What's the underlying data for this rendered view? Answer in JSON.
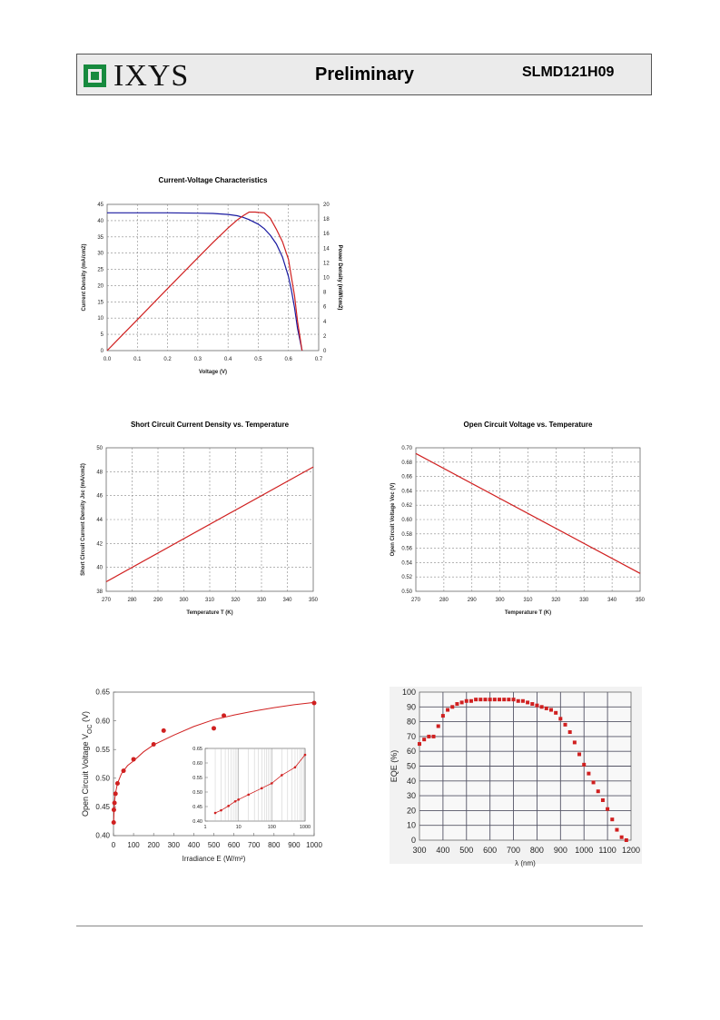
{
  "header": {
    "brand": "IXYS",
    "status": "Preliminary",
    "part_number": "SLMD121H09"
  },
  "chart_data": [
    {
      "id": "iv",
      "type": "line",
      "title": "Current-Voltage Characteristics",
      "xlabel": "Voltage (V)",
      "ylabel": "Current Density (mA/cm2)",
      "y2label": "Power Density (mW/cm2)",
      "xlim": [
        0,
        0.7
      ],
      "ylim": [
        0,
        45
      ],
      "y2lim": [
        0,
        20
      ],
      "xticks": [
        "0.0",
        "0.1",
        "0.2",
        "0.3",
        "0.4",
        "0.5",
        "0.6",
        "0.7"
      ],
      "yticks": [
        "0",
        "5",
        "10",
        "15",
        "20",
        "25",
        "30",
        "35",
        "40",
        "45"
      ],
      "y2ticks": [
        "0",
        "2",
        "4",
        "6",
        "8",
        "10",
        "12",
        "14",
        "16",
        "18",
        "20"
      ],
      "grid": true,
      "series": [
        {
          "color": "#1a1aa0",
          "axis": "left",
          "x": [
            0,
            0.1,
            0.2,
            0.3,
            0.35,
            0.4,
            0.43,
            0.45,
            0.47,
            0.5,
            0.52,
            0.54,
            0.56,
            0.58,
            0.6,
            0.61,
            0.62,
            0.63,
            0.645
          ],
          "y": [
            42.4,
            42.4,
            42.4,
            42.3,
            42.2,
            41.9,
            41.5,
            41.0,
            40.3,
            38.9,
            37.5,
            35.5,
            32.8,
            28.8,
            22.8,
            18.5,
            13.2,
            6.8,
            0
          ]
        },
        {
          "color": "#d02020",
          "axis": "right",
          "x": [
            0,
            0.1,
            0.2,
            0.3,
            0.35,
            0.4,
            0.43,
            0.45,
            0.47,
            0.49,
            0.5,
            0.52,
            0.54,
            0.56,
            0.58,
            0.6,
            0.61,
            0.62,
            0.63,
            0.645
          ],
          "y": [
            0,
            4.24,
            8.48,
            12.69,
            14.77,
            16.76,
            17.85,
            18.45,
            18.94,
            18.95,
            18.9,
            18.85,
            18.1,
            16.6,
            14.9,
            12.5,
            10.0,
            7.5,
            4.0,
            0
          ]
        }
      ]
    },
    {
      "id": "jsc",
      "type": "line",
      "title": "Short Circuit Current Density vs. Temperature",
      "xlabel": "Temperature T (K)",
      "ylabel": "Short Circuit Current Density Jsc (mA/cm2)",
      "xlim": [
        270,
        350
      ],
      "ylim": [
        38,
        50
      ],
      "xticks": [
        "270",
        "280",
        "290",
        "300",
        "310",
        "320",
        "330",
        "340",
        "350"
      ],
      "yticks": [
        "38",
        "40",
        "42",
        "44",
        "46",
        "48",
        "50"
      ],
      "grid": true,
      "series": [
        {
          "color": "#d02020",
          "x": [
            270,
            350
          ],
          "y": [
            38.8,
            48.4
          ]
        }
      ]
    },
    {
      "id": "voc_t",
      "type": "line",
      "title": "Open Circuit Voltage vs. Temperature",
      "xlabel": "Temperature T (K)",
      "ylabel": "Open Circuit Voltage Voc (V)",
      "xlim": [
        270,
        350
      ],
      "ylim": [
        0.5,
        0.7
      ],
      "xticks": [
        "270",
        "280",
        "290",
        "300",
        "310",
        "320",
        "330",
        "340",
        "350"
      ],
      "yticks": [
        "0.50",
        "0.52",
        "0.54",
        "0.56",
        "0.58",
        "0.60",
        "0.62",
        "0.64",
        "0.66",
        "0.68",
        "0.70"
      ],
      "grid": true,
      "series": [
        {
          "color": "#d02020",
          "x": [
            270,
            350
          ],
          "y": [
            0.692,
            0.525
          ]
        }
      ]
    },
    {
      "id": "voc_e",
      "type": "scatter",
      "xlabel": "Irradiance E (W/m²)",
      "ylabel": "Open Circuit Voltage V",
      "ylabel_sub": "OC",
      "ylabel_tail": " (V)",
      "xlim": [
        0,
        1000
      ],
      "ylim": [
        0.4,
        0.65
      ],
      "xticks": [
        "0",
        "100",
        "200",
        "300",
        "400",
        "500",
        "600",
        "700",
        "800",
        "900",
        "1000"
      ],
      "yticks": [
        "0.40",
        "0.45",
        "0.50",
        "0.55",
        "0.60",
        "0.65"
      ],
      "grid": false,
      "points": {
        "color": "#d02020",
        "x": [
          1,
          2,
          5,
          10,
          20,
          50,
          100,
          200,
          250,
          500,
          550,
          1000
        ],
        "y": [
          0.423,
          0.445,
          0.457,
          0.473,
          0.491,
          0.513,
          0.533,
          0.559,
          0.583,
          0.587,
          0.609,
          0.631
        ]
      },
      "fit": {
        "color": "#d02020",
        "x": [
          1,
          3,
          6,
          10,
          20,
          40,
          70,
          100,
          150,
          200,
          300,
          400,
          500,
          600,
          700,
          800,
          900,
          1000
        ],
        "y": [
          0.423,
          0.446,
          0.462,
          0.474,
          0.491,
          0.508,
          0.522,
          0.53,
          0.546,
          0.558,
          0.575,
          0.59,
          0.602,
          0.61,
          0.617,
          0.623,
          0.628,
          0.632
        ]
      },
      "inset": {
        "xscale": "log",
        "xlim": [
          1,
          1000
        ],
        "ylim": [
          0.4,
          0.65
        ],
        "xticks": [
          "1",
          "10",
          "100",
          "1000"
        ],
        "yticks": [
          "0.40",
          "0.45",
          "0.50",
          "0.55",
          "0.60",
          "0.65"
        ],
        "x": [
          2,
          3,
          5,
          8,
          10,
          20,
          50,
          100,
          200,
          500,
          1000
        ],
        "y": [
          0.428,
          0.437,
          0.452,
          0.468,
          0.474,
          0.491,
          0.513,
          0.53,
          0.558,
          0.585,
          0.628
        ]
      }
    },
    {
      "id": "eqe",
      "type": "scatter",
      "xlabel": "λ (nm)",
      "ylabel": "EQE (%)",
      "xlim": [
        300,
        1200
      ],
      "ylim": [
        0,
        100
      ],
      "xticks": [
        "300",
        "400",
        "500",
        "600",
        "700",
        "800",
        "900",
        "1000",
        "1100",
        "1200"
      ],
      "yticks": [
        "0",
        "10",
        "20",
        "30",
        "40",
        "50",
        "60",
        "70",
        "80",
        "90",
        "100"
      ],
      "grid": true,
      "points": {
        "color": "#d02020",
        "x": [
          300,
          320,
          340,
          360,
          380,
          400,
          420,
          440,
          460,
          480,
          500,
          520,
          540,
          560,
          580,
          600,
          620,
          640,
          660,
          680,
          700,
          720,
          740,
          760,
          780,
          800,
          820,
          840,
          860,
          880,
          900,
          920,
          940,
          960,
          980,
          1000,
          1020,
          1040,
          1060,
          1080,
          1100,
          1120,
          1140,
          1160,
          1180
        ],
        "y": [
          65,
          68,
          70,
          70,
          77,
          84,
          88,
          90,
          92,
          93,
          94,
          94,
          95,
          95,
          95,
          95,
          95,
          95,
          95,
          95,
          95,
          94,
          94,
          93,
          92,
          91,
          90,
          89,
          88,
          86,
          82,
          78,
          73,
          66,
          58,
          51,
          45,
          39,
          33,
          27,
          21,
          14,
          7,
          2,
          0
        ]
      }
    }
  ]
}
